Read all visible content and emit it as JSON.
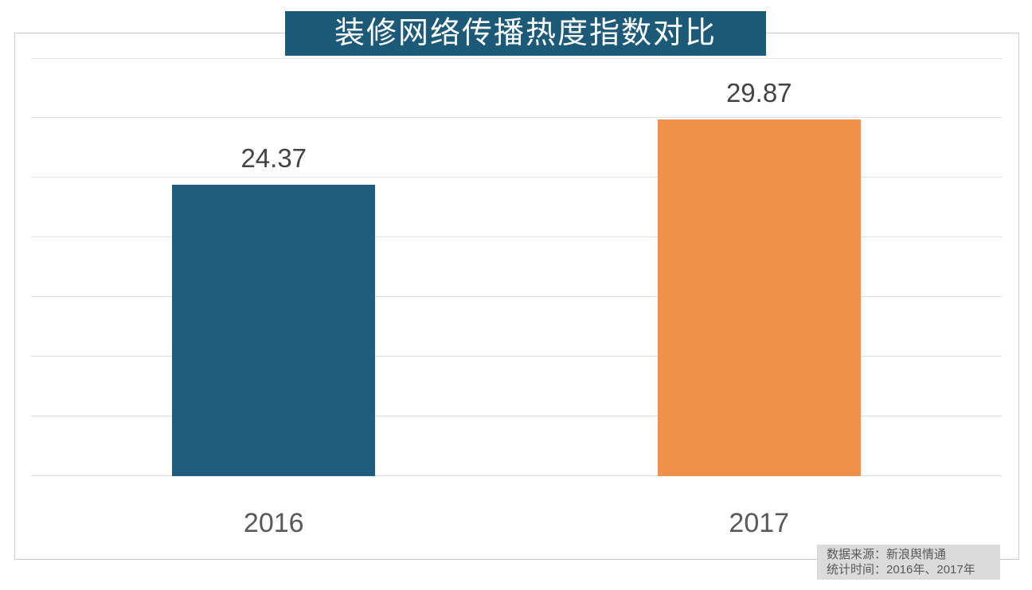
{
  "title": {
    "text": "装修网络传播热度指数对比"
  },
  "chart_data": {
    "type": "bar",
    "title": "装修网络传播热度指数对比",
    "categories": [
      "2016",
      "2017"
    ],
    "values": [
      24.37,
      29.87
    ],
    "value_labels": [
      "24.37",
      "29.87"
    ],
    "bar_colors": [
      "#1f5c7e",
      "#f0924a"
    ],
    "xlabel": "",
    "ylabel": "",
    "ylim": [
      0,
      35
    ],
    "gridline_step": 5,
    "grid": "horizontal",
    "legend": "none",
    "axis_tick_labels_visible": false
  },
  "source_note": {
    "line1": "数据来源：新浪舆情通",
    "line2": "统计时间：2016年、2017年"
  },
  "colors": {
    "background": "#ffffff",
    "title_banner_bg": "#1d5a77",
    "title_text": "#ffffff",
    "bar_2016": "#1f5c7e",
    "bar_2017": "#f0924a",
    "value_label_text": "#434343",
    "category_label_text": "#595959",
    "gridline": "#dedede",
    "chart_frame_border": "#cccccc",
    "source_note_bg": "#dbdbdb",
    "source_note_text": "#595959"
  }
}
